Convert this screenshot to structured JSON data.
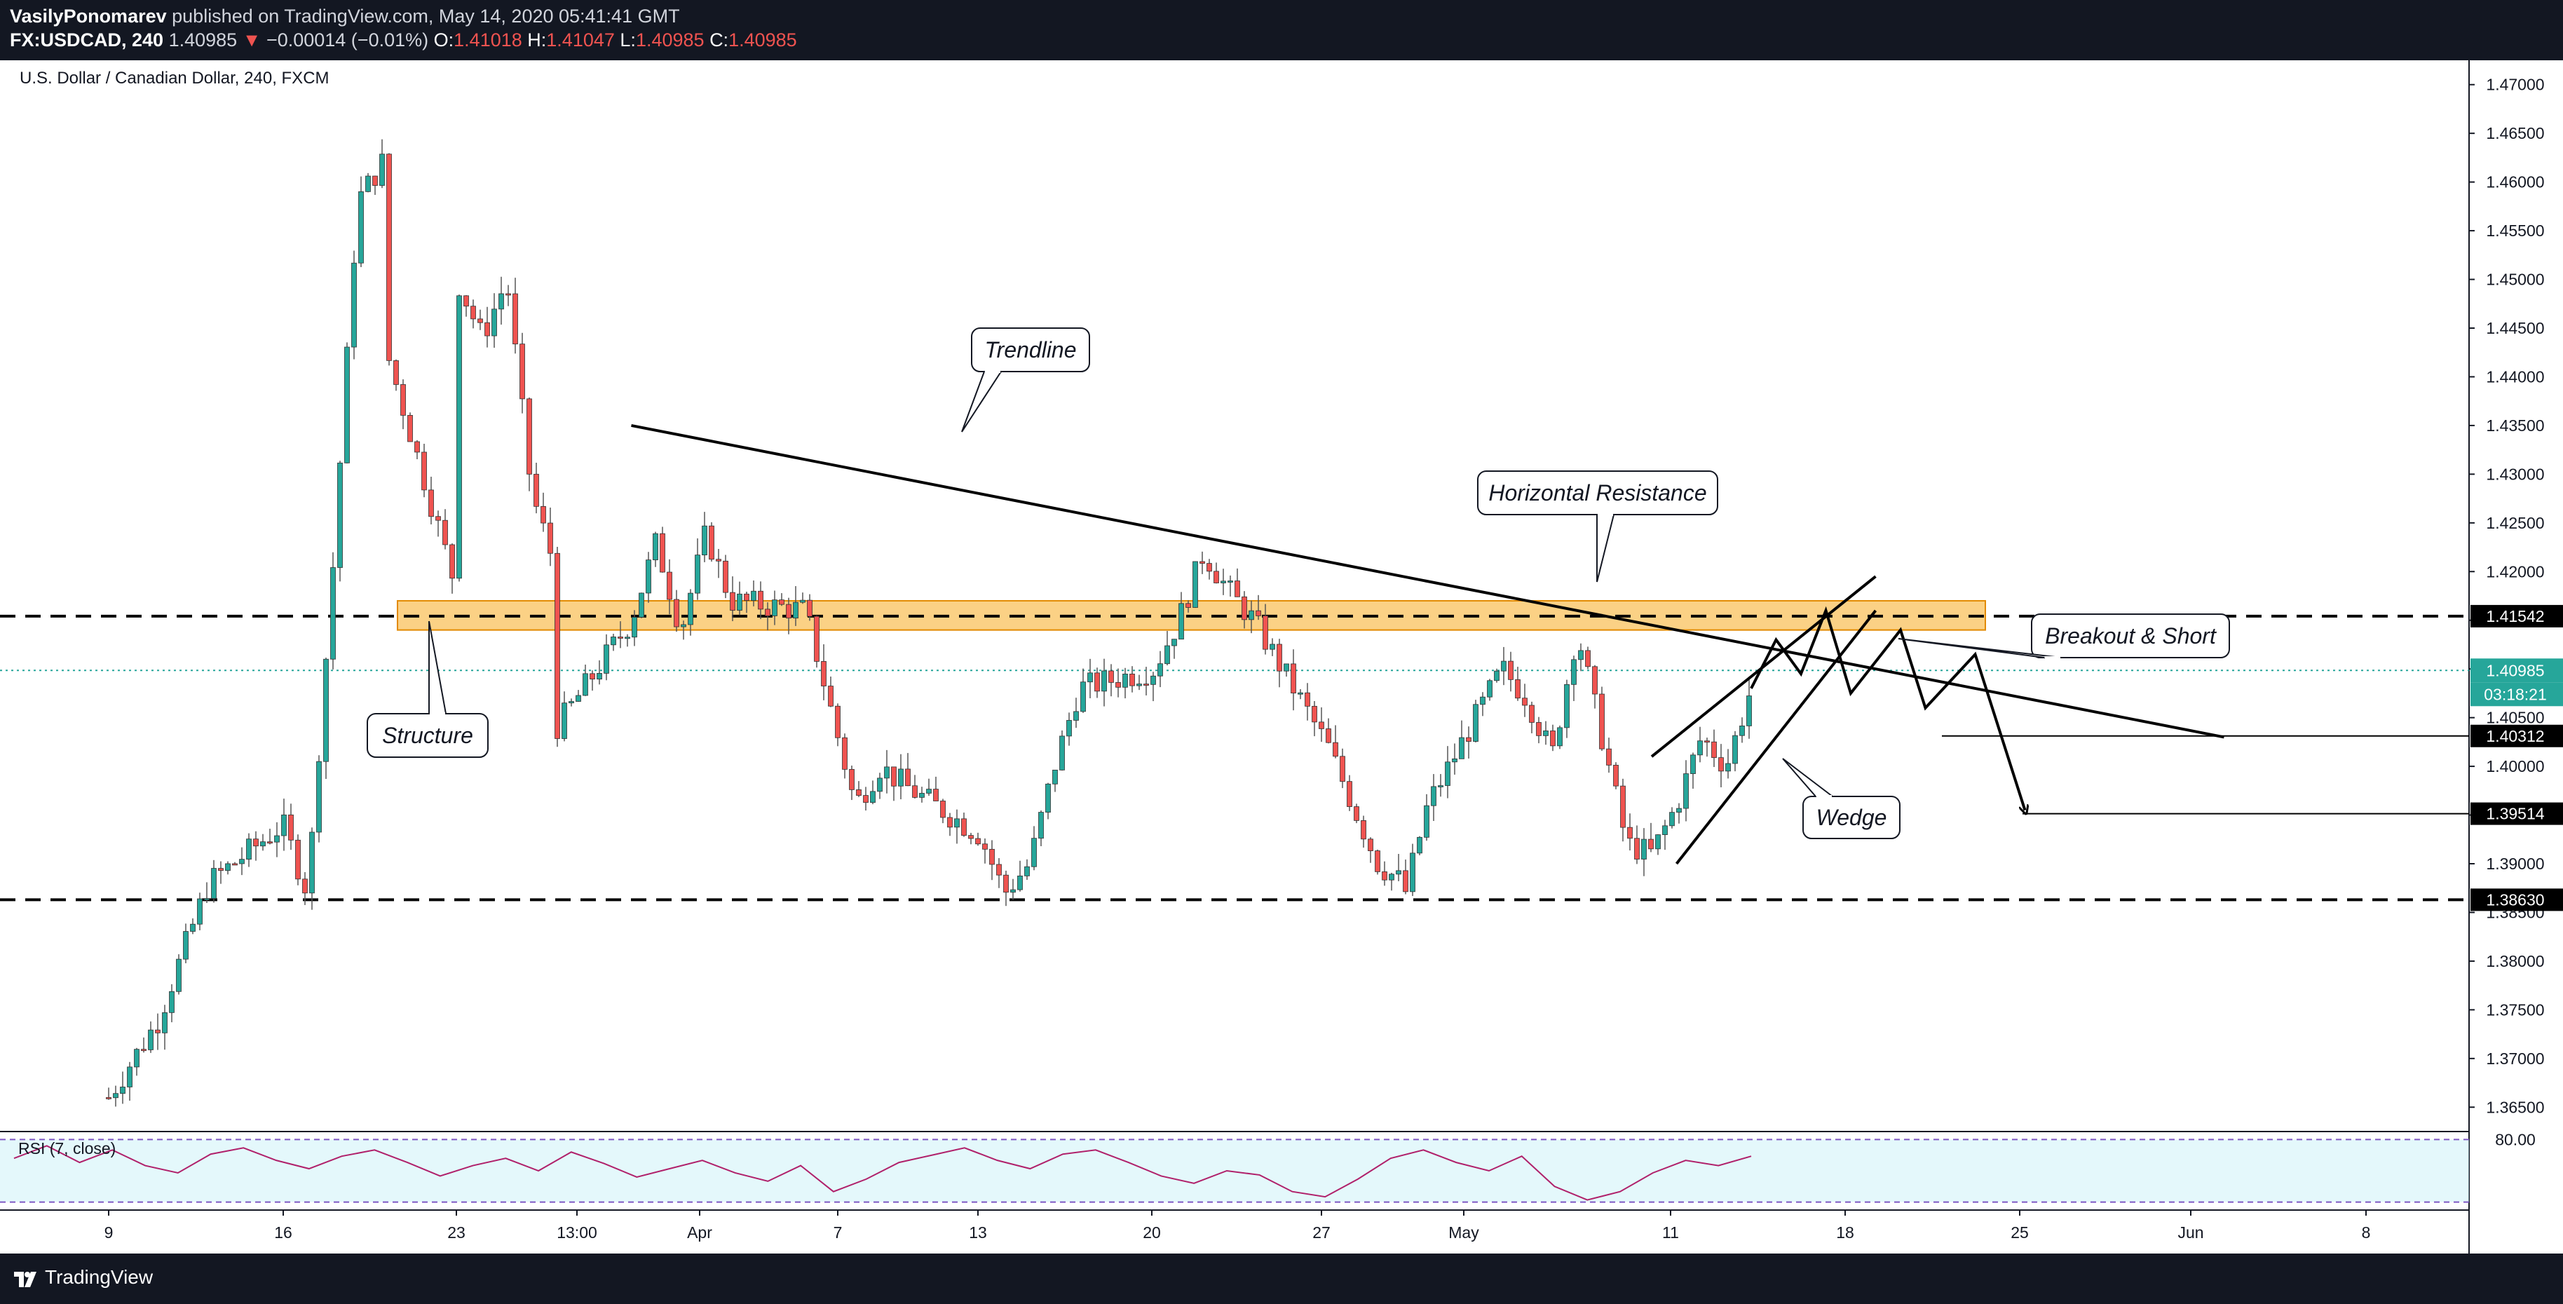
{
  "header": {
    "author": "VasilyPonomarev",
    "published_text": "published on TradingView.com, May 14, 2020 05:41:41 GMT",
    "symbol": "FX:USDCAD, 240",
    "last_price": "1.40985",
    "change_arrow": "▼",
    "change": "−0.00014 (−0.01%)",
    "o_label": "O:",
    "o_value": "1.41018",
    "h_label": "H:",
    "h_value": "1.41047",
    "l_label": "L:",
    "l_value": "1.40985",
    "c_label": "C:",
    "c_value": "1.40985"
  },
  "footer": {
    "brand": "TradingView",
    "logo_icon": "tradingview-logo-icon"
  },
  "chart_data": {
    "type": "candlestick",
    "title": "U.S. Dollar / Canadian Dollar, 240, FXCM",
    "ylim": [
      1.3625,
      1.4725
    ],
    "y_ticks": [
      "1.47000",
      "1.46500",
      "1.46000",
      "1.45500",
      "1.45000",
      "1.44500",
      "1.44000",
      "1.43500",
      "1.43000",
      "1.42500",
      "1.42000",
      "1.41500",
      "1.41000",
      "1.40500",
      "1.40000",
      "1.39500",
      "1.39000",
      "1.38500",
      "1.38000",
      "1.37500",
      "1.37000",
      "1.36500"
    ],
    "x_ticks": [
      "9",
      "16",
      "23",
      "13:00",
      "Apr",
      "7",
      "13",
      "20",
      "27",
      "May",
      "11",
      "18",
      "25",
      "Jun",
      "8"
    ],
    "price_path": [
      {
        "t": "2020-03-09",
        "v": 1.366
      },
      {
        "t": "2020-03-11",
        "v": 1.374
      },
      {
        "t": "2020-03-13",
        "v": 1.388
      },
      {
        "t": "2020-03-16",
        "v": 1.394
      },
      {
        "t": "2020-03-17",
        "v": 1.387
      },
      {
        "t": "2020-03-18",
        "v": 1.42
      },
      {
        "t": "2020-03-19",
        "v": 1.458
      },
      {
        "t": "2020-03-20",
        "v": 1.462
      },
      {
        "t": "2020-03-20",
        "v": 1.444
      },
      {
        "t": "2020-03-23",
        "v": 1.418
      },
      {
        "t": "2020-03-23",
        "v": 1.45
      },
      {
        "t": "2020-03-24",
        "v": 1.444
      },
      {
        "t": "2020-03-25",
        "v": 1.45
      },
      {
        "t": "2020-03-26",
        "v": 1.428
      },
      {
        "t": "2020-03-27",
        "v": 1.42
      },
      {
        "t": "2020-03-27",
        "v": 1.404
      },
      {
        "t": "2020-03-30",
        "v": 1.415
      },
      {
        "t": "2020-03-31",
        "v": 1.423
      },
      {
        "t": "2020-04-01",
        "v": 1.414
      },
      {
        "t": "2020-04-02",
        "v": 1.424
      },
      {
        "t": "2020-04-03",
        "v": 1.417
      },
      {
        "t": "2020-04-06",
        "v": 1.416
      },
      {
        "t": "2020-04-07",
        "v": 1.406
      },
      {
        "t": "2020-04-08",
        "v": 1.396
      },
      {
        "t": "2020-04-09",
        "v": 1.4
      },
      {
        "t": "2020-04-10",
        "v": 1.398
      },
      {
        "t": "2020-04-13",
        "v": 1.393
      },
      {
        "t": "2020-04-14",
        "v": 1.387
      },
      {
        "t": "2020-04-15",
        "v": 1.39
      },
      {
        "t": "2020-04-16",
        "v": 1.4
      },
      {
        "t": "2020-04-17",
        "v": 1.408
      },
      {
        "t": "2020-04-20",
        "v": 1.41
      },
      {
        "t": "2020-04-21",
        "v": 1.415
      },
      {
        "t": "2020-04-22",
        "v": 1.422
      },
      {
        "t": "2020-04-23",
        "v": 1.418
      },
      {
        "t": "2020-04-24",
        "v": 1.415
      },
      {
        "t": "2020-04-27",
        "v": 1.402
      },
      {
        "t": "2020-04-28",
        "v": 1.396
      },
      {
        "t": "2020-04-29",
        "v": 1.39
      },
      {
        "t": "2020-04-30",
        "v": 1.388
      },
      {
        "t": "2020-04-30",
        "v": 1.386
      },
      {
        "t": "2020-05-01",
        "v": 1.396
      },
      {
        "t": "2020-05-04",
        "v": 1.41
      },
      {
        "t": "2020-05-05",
        "v": 1.407
      },
      {
        "t": "2020-05-06",
        "v": 1.401
      },
      {
        "t": "2020-05-07",
        "v": 1.414
      },
      {
        "t": "2020-05-08",
        "v": 1.403
      },
      {
        "t": "2020-05-09",
        "v": 1.392
      },
      {
        "t": "2020-05-10",
        "v": 1.391
      },
      {
        "t": "2020-05-11",
        "v": 1.396
      },
      {
        "t": "2020-05-12",
        "v": 1.403
      },
      {
        "t": "2020-05-13",
        "v": 1.4
      },
      {
        "t": "2020-05-14",
        "v": 1.408
      }
    ],
    "horizontal_lines": [
      {
        "price": 1.41542,
        "label": "1.41542",
        "style": "dashed"
      },
      {
        "price": 1.3863,
        "label": "1.38630",
        "style": "dashed"
      },
      {
        "price": 1.40312,
        "label": "1.40312",
        "style": "solid"
      },
      {
        "price": 1.39514,
        "label": "1.39514",
        "style": "solid"
      }
    ],
    "current_price": {
      "price": 1.40985,
      "label": "1.40985",
      "countdown": "03:18:21",
      "color": "#26a69a"
    },
    "resistance_zone": {
      "from": 1.414,
      "to": 1.417,
      "color": "#f9b233"
    },
    "trendline": {
      "from": {
        "t": "2020-03-30",
        "v": 1.435
      },
      "to": {
        "t": "2020-06-02",
        "v": 1.403
      }
    },
    "wedge": {
      "upper": {
        "from": {
          "t": "2020-05-10",
          "v": 1.401
        },
        "to": {
          "t": "2020-05-19",
          "v": 1.4195
        }
      },
      "lower": {
        "from": {
          "t": "2020-05-11",
          "v": 1.39
        },
        "to": {
          "t": "2020-05-19",
          "v": 1.416
        }
      }
    },
    "projection": [
      {
        "t": "2020-05-14",
        "v": 1.408
      },
      {
        "t": "2020-05-15",
        "v": 1.413
      },
      {
        "t": "2020-05-16",
        "v": 1.4095
      },
      {
        "t": "2020-05-17",
        "v": 1.416
      },
      {
        "t": "2020-05-18",
        "v": 1.4075
      },
      {
        "t": "2020-05-20",
        "v": 1.414
      },
      {
        "t": "2020-05-21",
        "v": 1.406
      },
      {
        "t": "2020-05-23",
        "v": 1.4115
      },
      {
        "t": "2020-05-25",
        "v": 1.3955
      }
    ],
    "annotations": [
      "Trendline",
      "Horizontal Resistance",
      "Structure",
      "Breakout & Short",
      "Wedge"
    ],
    "rsi": {
      "label": "RSI (7, close)",
      "level_label": "80.00",
      "values": [
        62,
        74,
        58,
        70,
        55,
        48,
        66,
        72,
        60,
        52,
        64,
        70,
        58,
        45,
        55,
        62,
        50,
        68,
        57,
        44,
        52,
        60,
        48,
        40,
        55,
        30,
        42,
        58,
        65,
        72,
        60,
        52,
        66,
        70,
        58,
        45,
        38,
        50,
        46,
        30,
        25,
        42,
        62,
        70,
        58,
        50,
        64,
        35,
        22,
        30,
        48,
        60,
        55,
        64
      ]
    }
  }
}
